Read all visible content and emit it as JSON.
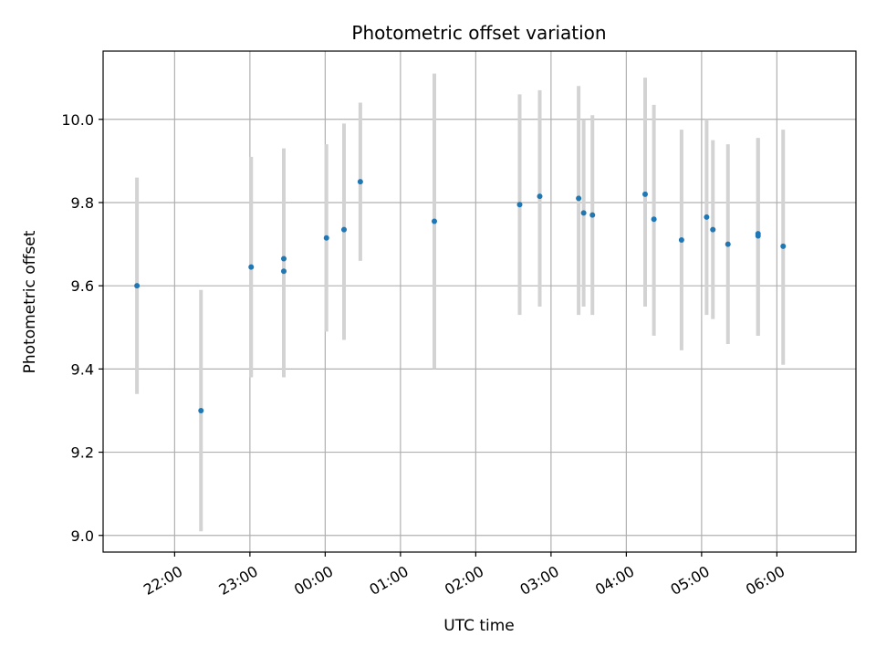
{
  "chart_data": {
    "type": "scatter",
    "title": "Photometric offset variation",
    "xlabel": "UTC time",
    "ylabel": "Photometric offset",
    "x_ticks": [
      "22:00",
      "23:00",
      "00:00",
      "01:00",
      "02:00",
      "03:00",
      "04:00",
      "05:00",
      "06:00"
    ],
    "x_tick_hours": [
      22,
      23,
      24,
      25,
      26,
      27,
      28,
      29,
      30
    ],
    "xlim_hours": [
      21.05,
      31.05
    ],
    "ylim": [
      8.96,
      10.164
    ],
    "y_ticks": [
      9.0,
      9.2,
      9.4,
      9.6,
      9.8,
      10.0
    ],
    "grid": true,
    "colors": {
      "point": "#1f77b4",
      "errorbar": "#d3d3d3",
      "grid": "#b0b0b0"
    },
    "points": [
      {
        "t": "21:30",
        "y": 9.6,
        "err_low": 9.34,
        "err_high": 9.86
      },
      {
        "t": "22:21",
        "y": 9.3,
        "err_low": 9.01,
        "err_high": 9.59
      },
      {
        "t": "23:01",
        "y": 9.645,
        "err_low": 9.38,
        "err_high": 9.91
      },
      {
        "t": "23:27",
        "y": 9.665,
        "err_low": 9.38,
        "err_high": 9.93
      },
      {
        "t": "23:27",
        "y": 9.635,
        "err_low": 9.38,
        "err_high": 9.93
      },
      {
        "t": "00:01",
        "y": 9.715,
        "err_low": 9.49,
        "err_high": 9.94
      },
      {
        "t": "00:15",
        "y": 9.735,
        "err_low": 9.47,
        "err_high": 9.99
      },
      {
        "t": "00:28",
        "y": 9.85,
        "err_low": 9.66,
        "err_high": 10.04
      },
      {
        "t": "01:27",
        "y": 9.755,
        "err_low": 9.4,
        "err_high": 10.11
      },
      {
        "t": "02:35",
        "y": 9.795,
        "err_low": 9.53,
        "err_high": 10.06
      },
      {
        "t": "02:51",
        "y": 9.815,
        "err_low": 9.55,
        "err_high": 10.07
      },
      {
        "t": "03:22",
        "y": 9.81,
        "err_low": 9.53,
        "err_high": 10.08
      },
      {
        "t": "03:26",
        "y": 9.775,
        "err_low": 9.55,
        "err_high": 10.0
      },
      {
        "t": "03:33",
        "y": 9.77,
        "err_low": 9.53,
        "err_high": 10.01
      },
      {
        "t": "04:15",
        "y": 9.82,
        "err_low": 9.55,
        "err_high": 10.1
      },
      {
        "t": "04:22",
        "y": 9.76,
        "err_low": 9.48,
        "err_high": 10.035
      },
      {
        "t": "04:44",
        "y": 9.71,
        "err_low": 9.445,
        "err_high": 9.975
      },
      {
        "t": "05:04",
        "y": 9.765,
        "err_low": 9.53,
        "err_high": 10.0
      },
      {
        "t": "05:09",
        "y": 9.735,
        "err_low": 9.52,
        "err_high": 9.95
      },
      {
        "t": "05:21",
        "y": 9.7,
        "err_low": 9.46,
        "err_high": 9.94
      },
      {
        "t": "05:45",
        "y": 9.725,
        "err_low": 9.48,
        "err_high": 9.955
      },
      {
        "t": "05:45",
        "y": 9.72,
        "err_low": 9.48,
        "err_high": 9.955
      },
      {
        "t": "06:05",
        "y": 9.695,
        "err_low": 9.41,
        "err_high": 9.975
      }
    ]
  }
}
